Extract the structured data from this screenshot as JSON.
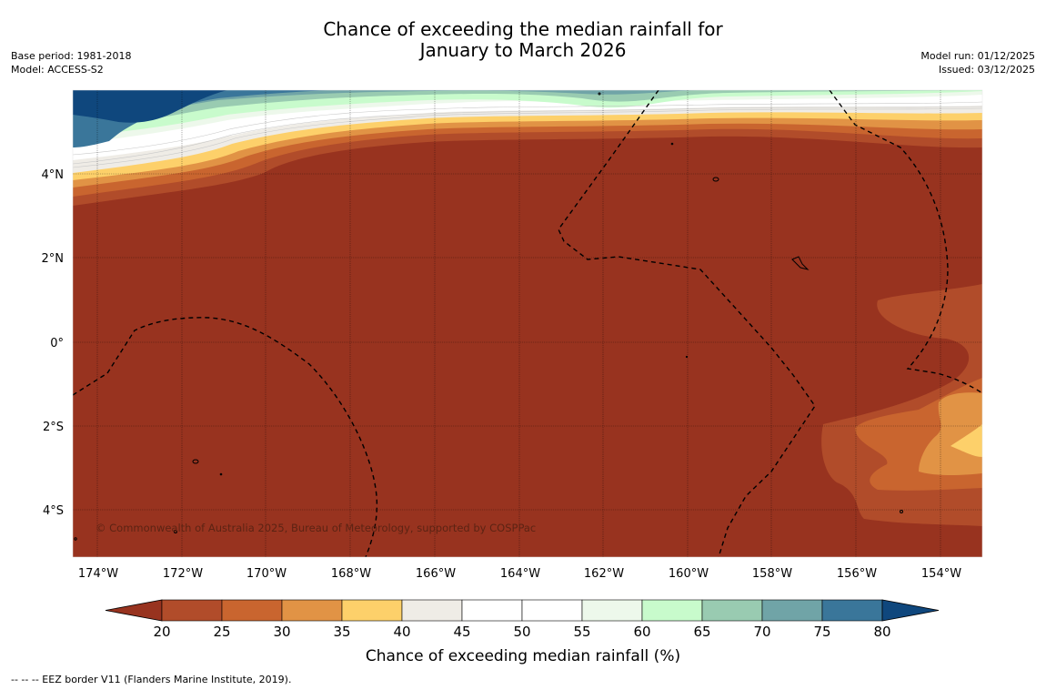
{
  "header": {
    "title_line1": "Chance of exceeding the median rainfall for",
    "title_line2": "January to March 2026",
    "base_period": "Base period: 1981-2018",
    "model": "Model: ACCESS-S2",
    "model_run": "Model run: 01/12/2025",
    "issued": "Issued: 03/12/2025"
  },
  "map": {
    "background_color": "#98331f",
    "copyright": "© Commonwealth of Australia 2025, Bureau of Meteorology, supported by COSPPac",
    "y_ticks": [
      "4°N",
      "2°N",
      "0°",
      "2°S",
      "4°S"
    ],
    "x_ticks": [
      "174°W",
      "172°W",
      "170°W",
      "168°W",
      "166°W",
      "164°W",
      "162°W",
      "160°W",
      "158°W",
      "156°W",
      "154°W"
    ]
  },
  "colorbar": {
    "title": "Chance of exceeding median rainfall (%)",
    "ticks": [
      "20",
      "25",
      "30",
      "35",
      "40",
      "45",
      "50",
      "55",
      "60",
      "65",
      "70",
      "75",
      "80"
    ],
    "colors": [
      "#98331f",
      "#b14c2a",
      "#c9652f",
      "#e19345",
      "#fdd06a",
      "#efece6",
      "#ffffff",
      "#ffffff",
      "#edf8eb",
      "#c8fbcc",
      "#99cbb1",
      "#70a4a7",
      "#3a769a",
      "#0f477d"
    ]
  },
  "footer": {
    "legend": "--  --  -- EEZ border V11 (Flanders Marine Institute, 2019)."
  }
}
